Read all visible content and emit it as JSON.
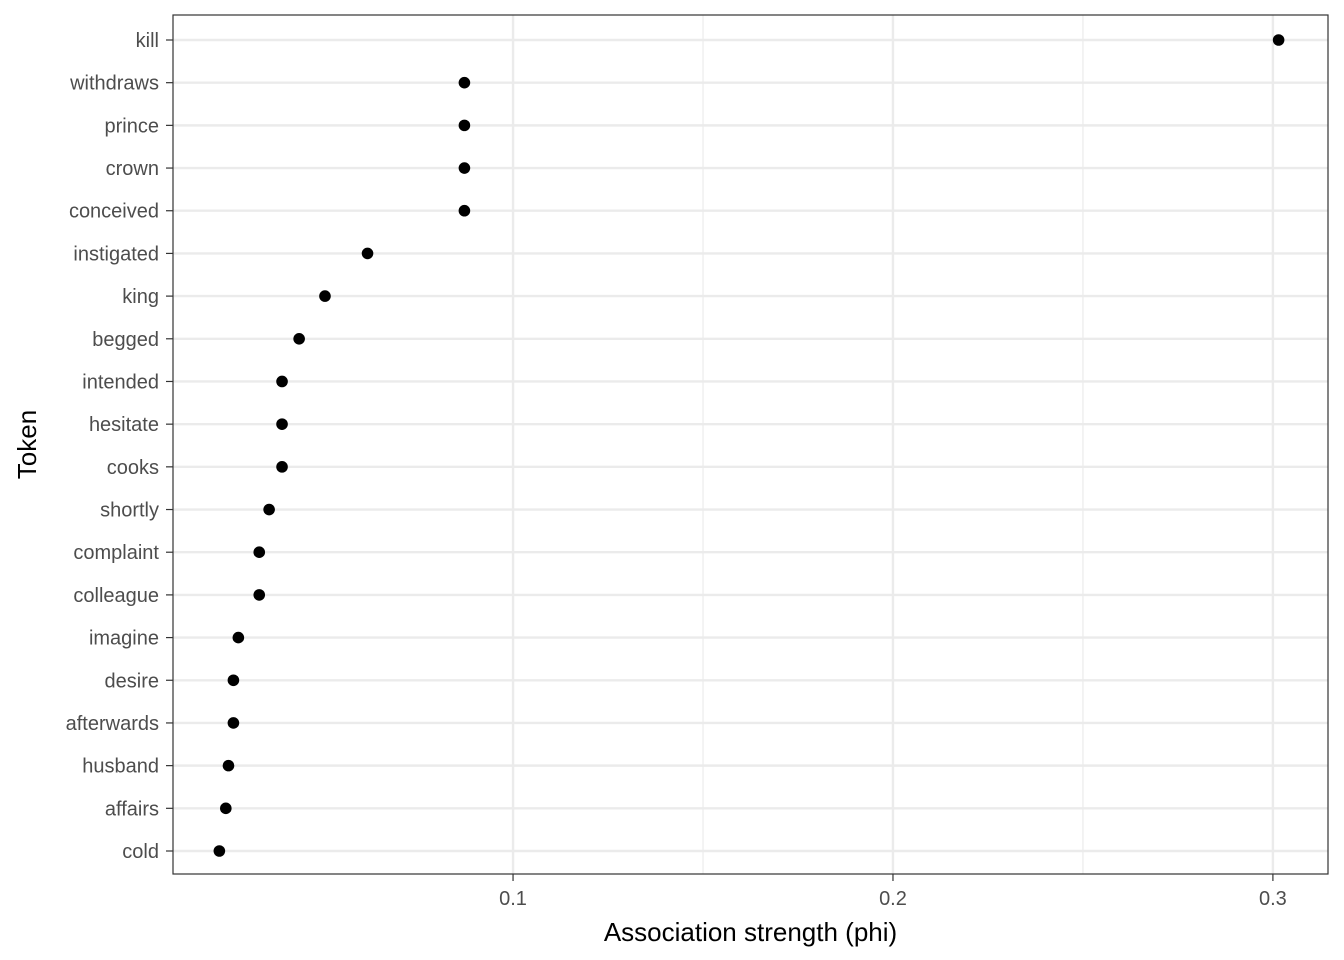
{
  "chart_data": {
    "type": "scatter",
    "title": "",
    "xlabel": "Association strength (phi)",
    "ylabel": "Token",
    "xlim": [
      0.0105,
      0.3145
    ],
    "xticks": [
      {
        "value": 0.1,
        "label": "0.1"
      },
      {
        "value": 0.2,
        "label": "0.2"
      },
      {
        "value": 0.3,
        "label": "0.3"
      }
    ],
    "x_minor_gridlines": [
      0.15,
      0.25
    ],
    "grid": true,
    "theme": "black-and-white with grey gridlines",
    "point_color": "#000000",
    "categories": [
      "kill",
      "withdraws",
      "prince",
      "crown",
      "conceived",
      "instigated",
      "king",
      "begged",
      "intended",
      "hesitate",
      "cooks",
      "shortly",
      "complaint",
      "colleague",
      "imagine",
      "desire",
      "afterwards",
      "husband",
      "affairs",
      "cold"
    ],
    "values": [
      0.3015,
      0.0872,
      0.0872,
      0.0872,
      0.0872,
      0.0617,
      0.0505,
      0.0437,
      0.0392,
      0.0392,
      0.0392,
      0.0358,
      0.0332,
      0.0332,
      0.0277,
      0.0264,
      0.0264,
      0.0251,
      0.0244,
      0.0227
    ]
  }
}
